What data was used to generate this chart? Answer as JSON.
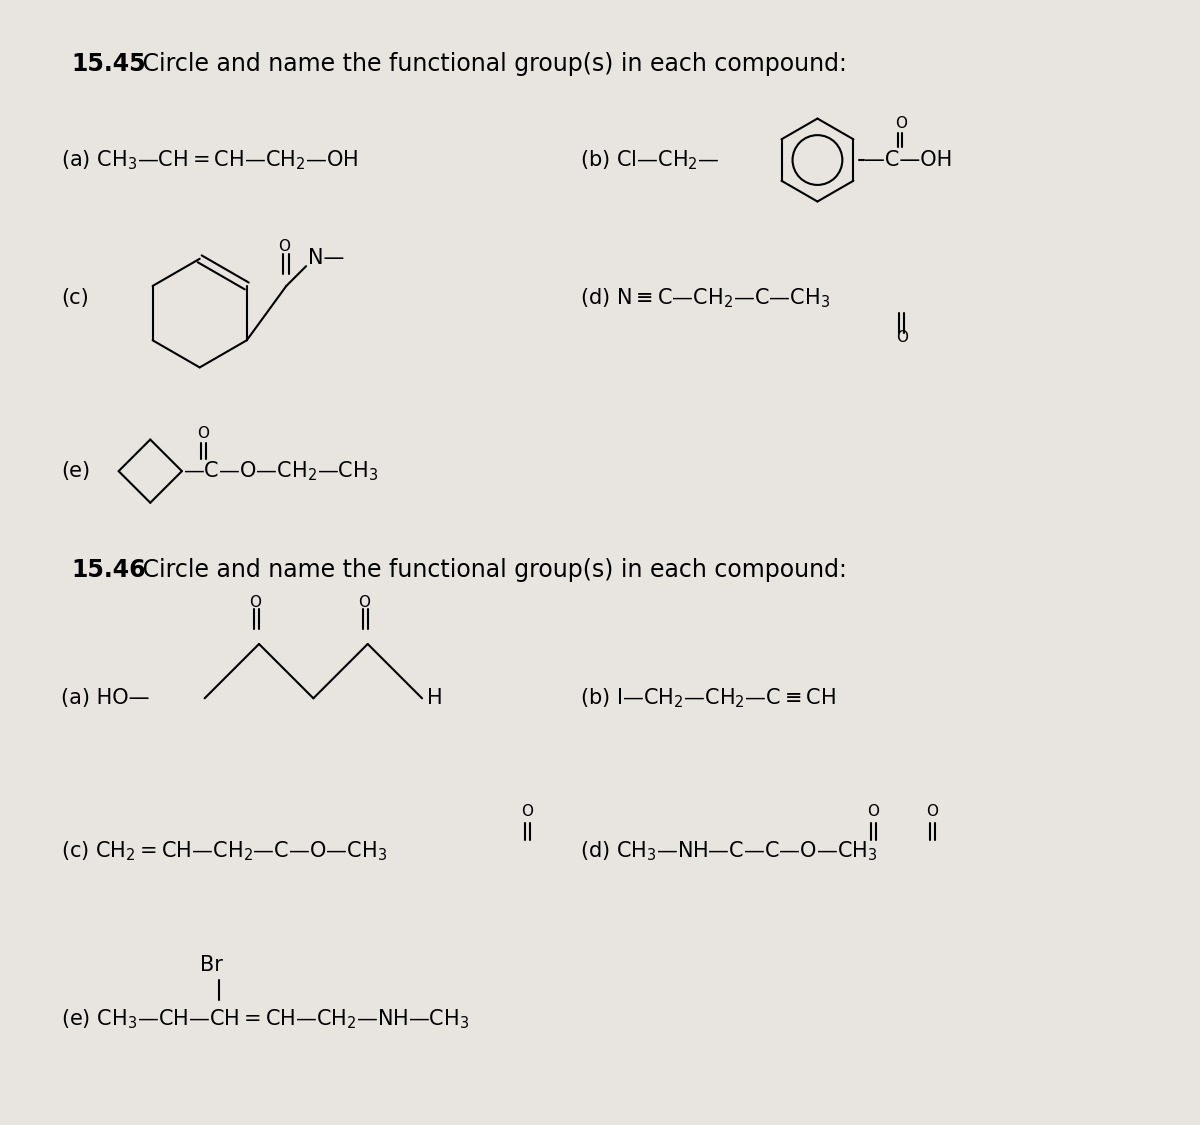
{
  "bg_color": "#e8e4e0",
  "title_fs": 17,
  "label_fs": 15,
  "sub_fs": 11,
  "small_fs": 12,
  "sections": {
    "s1_header_bold": "15.45",
    "s1_header_rest": " Circle and name the functional group(s) in each compound:",
    "s2_header_bold": "15.46",
    "s2_header_rest": " Circle and name the functional group(s) in each compound:"
  }
}
